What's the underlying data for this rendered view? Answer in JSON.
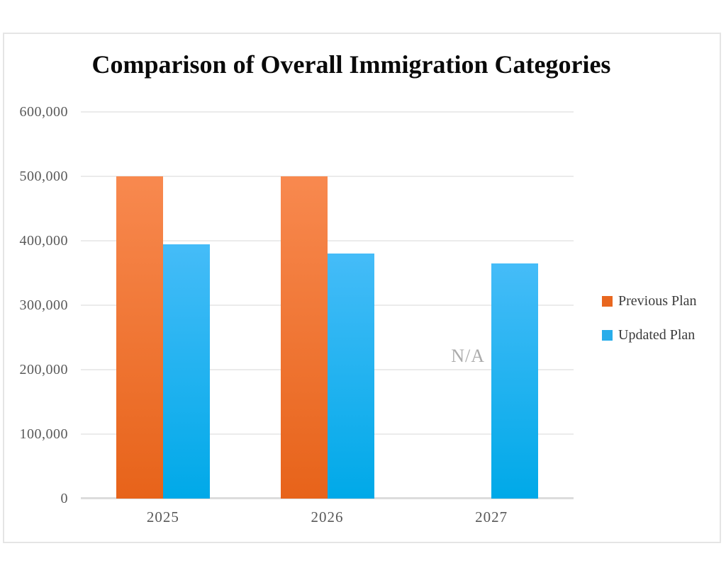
{
  "chart_data": {
    "type": "bar",
    "title": "Comparison of Overall Immigration Categories",
    "categories": [
      "2025",
      "2026",
      "2027"
    ],
    "series": [
      {
        "name": "Previous Plan",
        "color": "#E8671F",
        "gradient_top": "#F8894F",
        "gradient_bottom": "#E7631A",
        "values": [
          500000,
          500000,
          null
        ]
      },
      {
        "name": "Updated Plan",
        "color": "#29ADEA",
        "gradient_top": "#45BCF8",
        "gradient_bottom": "#00A9E8",
        "values": [
          395000,
          380000,
          365000
        ]
      }
    ],
    "missing_value_label": "N/A",
    "xlabel": "",
    "ylabel": "",
    "ylim": [
      0,
      600000
    ],
    "yticks": [
      {
        "value": 600000,
        "label": "600,000"
      },
      {
        "value": 500000,
        "label": "500,000"
      },
      {
        "value": 400000,
        "label": "400,000"
      },
      {
        "value": 300000,
        "label": "300,000"
      },
      {
        "value": 200000,
        "label": "200,000"
      },
      {
        "value": 100000,
        "label": "100,000"
      },
      {
        "value": 0,
        "label": "0"
      }
    ],
    "grid": true,
    "legend_position": "right",
    "axis_text_color": "#595959",
    "grid_color": "#EBEBEB"
  }
}
